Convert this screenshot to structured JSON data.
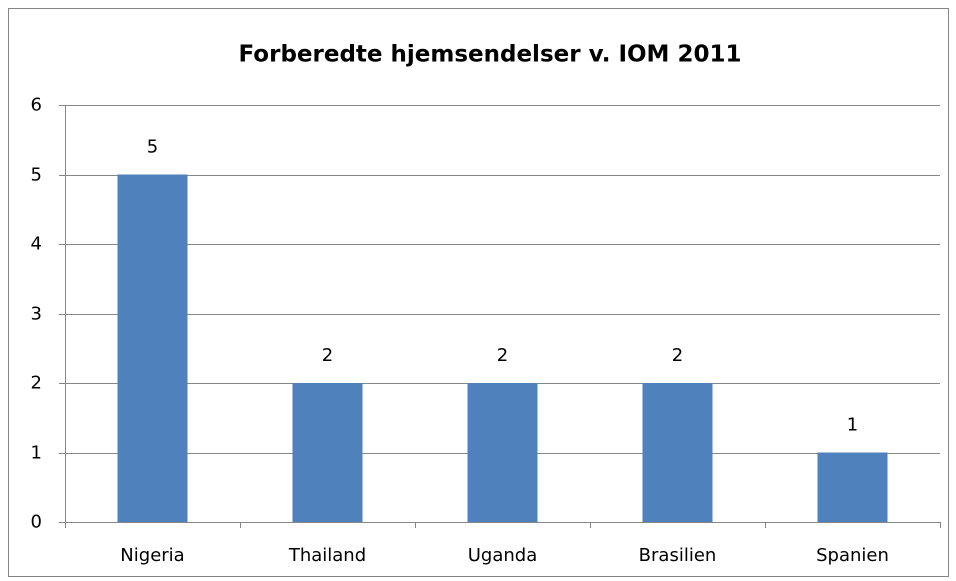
{
  "chart_data": {
    "type": "bar",
    "title": "Forberedte hjemsendelser v. IOM 2011",
    "categories": [
      "Nigeria",
      "Thailand",
      "Uganda",
      "Brasilien",
      "Spanien"
    ],
    "values": [
      5,
      2,
      2,
      2,
      1
    ],
    "color": "#4f81bd",
    "ylim": [
      0,
      6
    ],
    "yticks": [
      0,
      1,
      2,
      3,
      4,
      5,
      6
    ],
    "grid": true
  }
}
